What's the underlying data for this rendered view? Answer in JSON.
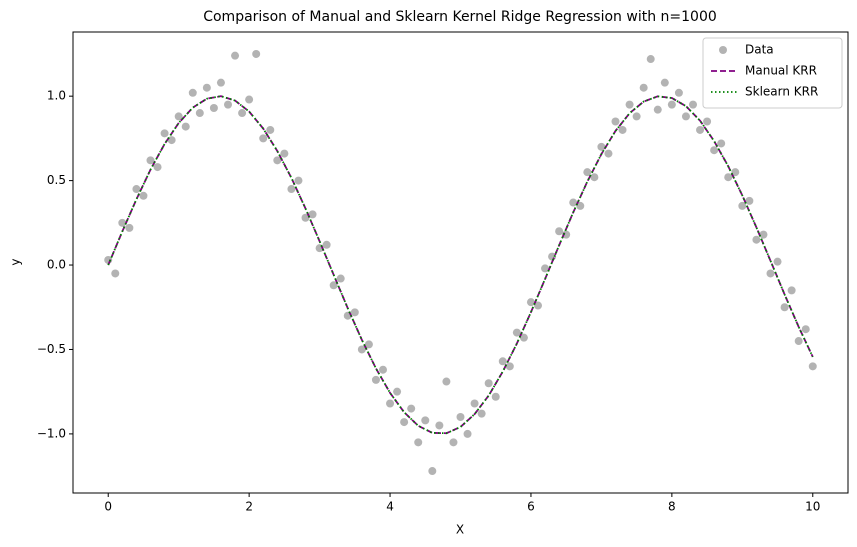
{
  "chart_data": {
    "type": "scatter",
    "title": "Comparison of Manual and Sklearn Kernel Ridge Regression with n=1000",
    "x_label": "X",
    "y_label": "y",
    "xlim": [
      -0.5,
      10.5
    ],
    "ylim": [
      -1.35,
      1.38
    ],
    "xticks": [
      0,
      2,
      4,
      6,
      8,
      10
    ],
    "yticks": [
      {
        "value": -1.0,
        "label": "−1.0"
      },
      {
        "value": -0.5,
        "label": "−0.5"
      },
      {
        "value": 0.0,
        "label": "0.0"
      },
      {
        "value": 0.5,
        "label": "0.5"
      },
      {
        "value": 1.0,
        "label": "1.0"
      }
    ],
    "legend": "upper right",
    "series": [
      {
        "name": "Data",
        "type": "scatter",
        "color": "#808080",
        "x": [
          0,
          0.1,
          0.2,
          0.3,
          0.4,
          0.5,
          0.6,
          0.7,
          0.8,
          0.9,
          1,
          1.1,
          1.2,
          1.3,
          1.4,
          1.5,
          1.6,
          1.7,
          1.8,
          1.9,
          2,
          2.1,
          2.2,
          2.3,
          2.4,
          2.5,
          2.6,
          2.7,
          2.8,
          2.9,
          3,
          3.1,
          3.2,
          3.3,
          3.4,
          3.5,
          3.6,
          3.7,
          3.8,
          3.9,
          4,
          4.1,
          4.2,
          4.3,
          4.4,
          4.5,
          4.6,
          4.7,
          4.8,
          4.9,
          5,
          5.1,
          5.2,
          5.3,
          5.4,
          5.5,
          5.6,
          5.7,
          5.8,
          5.9,
          6,
          6.1,
          6.2,
          6.3,
          6.4,
          6.5,
          6.6,
          6.7,
          6.8,
          6.9,
          7,
          7.1,
          7.2,
          7.3,
          7.4,
          7.5,
          7.6,
          7.7,
          7.8,
          7.9,
          8,
          8.1,
          8.2,
          8.3,
          8.4,
          8.5,
          8.6,
          8.7,
          8.8,
          8.9,
          9,
          9.1,
          9.2,
          9.3,
          9.4,
          9.5,
          9.6,
          9.7,
          9.8,
          9.9,
          10
        ],
        "values": [
          0.03,
          -0.05,
          0.25,
          0.22,
          0.45,
          0.41,
          0.62,
          0.58,
          0.78,
          0.74,
          0.88,
          0.82,
          1.02,
          0.9,
          1.05,
          0.93,
          1.08,
          0.95,
          1.24,
          0.9,
          0.98,
          1.25,
          0.75,
          0.8,
          0.62,
          0.66,
          0.45,
          0.5,
          0.28,
          0.3,
          0.1,
          0.12,
          -0.12,
          -0.08,
          -0.3,
          -0.28,
          -0.5,
          -0.47,
          -0.68,
          -0.62,
          -0.82,
          -0.75,
          -0.93,
          -0.85,
          -1.05,
          -0.92,
          -1.22,
          -0.95,
          -0.69,
          -1.05,
          -0.9,
          -1.0,
          -0.82,
          -0.88,
          -0.7,
          -0.78,
          -0.57,
          -0.6,
          -0.4,
          -0.43,
          -0.22,
          -0.24,
          -0.02,
          0.05,
          0.2,
          0.18,
          0.37,
          0.35,
          0.55,
          0.52,
          0.7,
          0.66,
          0.85,
          0.8,
          0.95,
          0.88,
          1.05,
          1.22,
          0.92,
          1.08,
          0.95,
          1.02,
          0.88,
          0.95,
          0.8,
          0.85,
          0.68,
          0.72,
          0.52,
          0.55,
          0.35,
          0.38,
          0.15,
          0.18,
          -0.05,
          0.02,
          -0.25,
          -0.15,
          -0.45,
          -0.38,
          -0.6
        ]
      },
      {
        "name": "Manual KRR",
        "type": "line",
        "style": "dashed",
        "color": "#800080",
        "x": [
          0,
          0.2,
          0.4,
          0.6,
          0.8,
          1,
          1.2,
          1.4,
          1.6,
          1.8,
          2,
          2.2,
          2.4,
          2.6,
          2.8,
          3,
          3.2,
          3.4,
          3.6,
          3.8,
          4,
          4.2,
          4.4,
          4.6,
          4.8,
          5,
          5.2,
          5.4,
          5.6,
          5.8,
          6,
          6.2,
          6.4,
          6.6,
          6.8,
          7,
          7.2,
          7.4,
          7.6,
          7.8,
          8,
          8.2,
          8.4,
          8.6,
          8.8,
          9,
          9.2,
          9.4,
          9.6,
          9.8,
          10
        ],
        "values": [
          0,
          0.199,
          0.389,
          0.565,
          0.717,
          0.841,
          0.932,
          0.985,
          1.0,
          0.974,
          0.909,
          0.808,
          0.675,
          0.516,
          0.335,
          0.141,
          -0.058,
          -0.256,
          -0.443,
          -0.612,
          -0.757,
          -0.872,
          -0.952,
          -0.994,
          -0.996,
          -0.959,
          -0.883,
          -0.773,
          -0.631,
          -0.465,
          -0.279,
          -0.083,
          0.117,
          0.312,
          0.494,
          0.657,
          0.794,
          0.899,
          0.968,
          0.999,
          0.989,
          0.941,
          0.855,
          0.734,
          0.585,
          0.412,
          0.223,
          0.025,
          -0.174,
          -0.366,
          -0.544
        ]
      },
      {
        "name": "Sklearn KRR",
        "type": "line",
        "style": "dotted",
        "color": "#008000",
        "x": [
          0,
          0.2,
          0.4,
          0.6,
          0.8,
          1,
          1.2,
          1.4,
          1.6,
          1.8,
          2,
          2.2,
          2.4,
          2.6,
          2.8,
          3,
          3.2,
          3.4,
          3.6,
          3.8,
          4,
          4.2,
          4.4,
          4.6,
          4.8,
          5,
          5.2,
          5.4,
          5.6,
          5.8,
          6,
          6.2,
          6.4,
          6.6,
          6.8,
          7,
          7.2,
          7.4,
          7.6,
          7.8,
          8,
          8.2,
          8.4,
          8.6,
          8.8,
          9,
          9.2,
          9.4,
          9.6,
          9.8,
          10
        ],
        "values": [
          0,
          0.199,
          0.389,
          0.565,
          0.717,
          0.841,
          0.932,
          0.985,
          1.0,
          0.974,
          0.909,
          0.808,
          0.675,
          0.516,
          0.335,
          0.141,
          -0.058,
          -0.256,
          -0.443,
          -0.612,
          -0.757,
          -0.872,
          -0.952,
          -0.994,
          -0.996,
          -0.959,
          -0.883,
          -0.773,
          -0.631,
          -0.465,
          -0.279,
          -0.083,
          0.117,
          0.312,
          0.494,
          0.657,
          0.794,
          0.899,
          0.968,
          0.999,
          0.989,
          0.941,
          0.855,
          0.734,
          0.585,
          0.412,
          0.223,
          0.025,
          -0.174,
          -0.366,
          -0.544
        ]
      }
    ]
  }
}
